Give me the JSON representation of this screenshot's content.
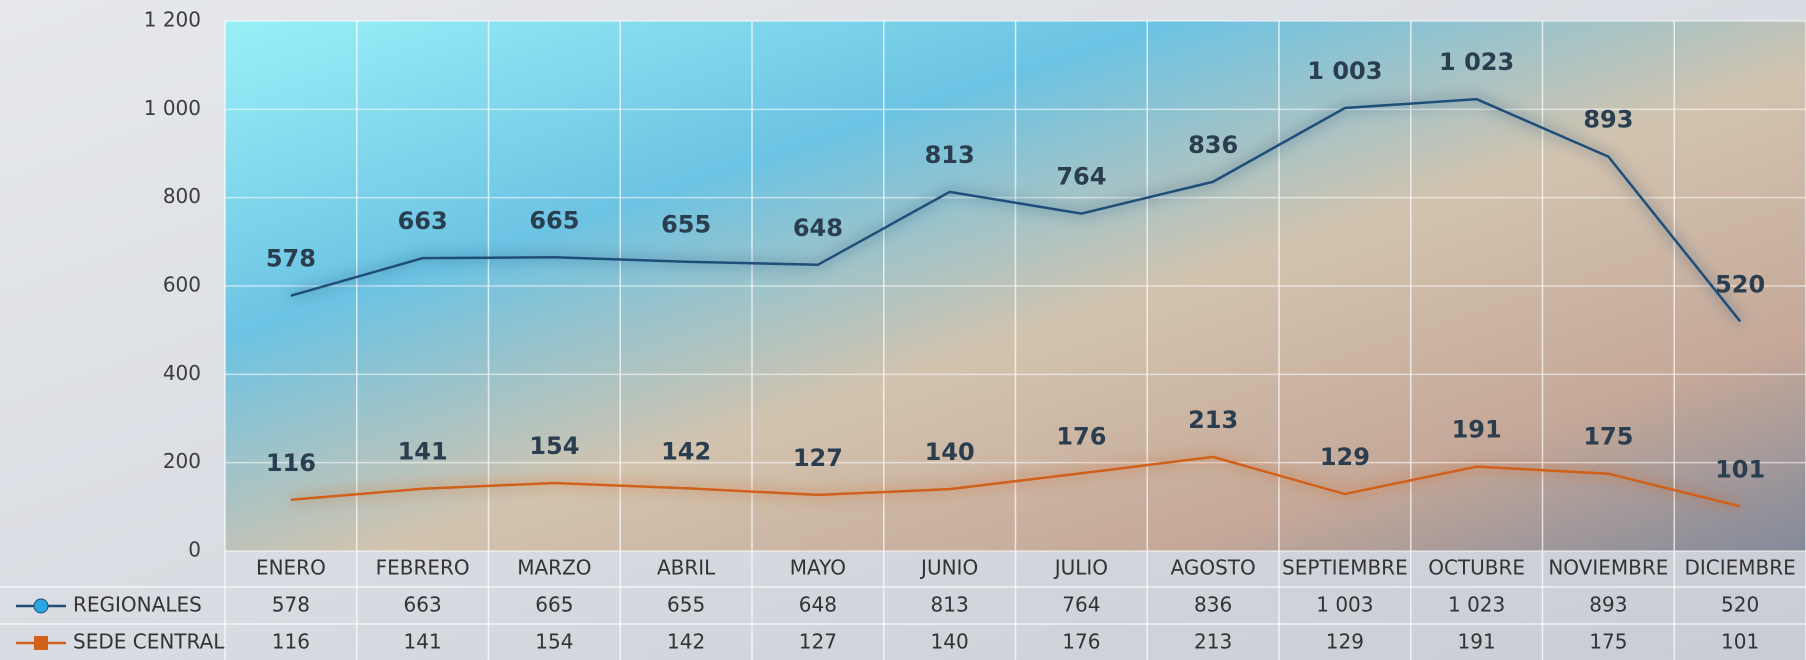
{
  "chart_data": {
    "type": "line",
    "categories": [
      "ENERO",
      "FEBRERO",
      "MARZO",
      "ABRIL",
      "MAYO",
      "JUNIO",
      "JULIO",
      "AGOSTO",
      "SEPTIEMBRE",
      "OCTUBRE",
      "NOVIEMBRE",
      "DICIEMBRE"
    ],
    "series": [
      {
        "name": "REGIONALES",
        "color": "#1f4e79",
        "marker": "circle",
        "values": [
          578,
          663,
          665,
          655,
          648,
          813,
          764,
          836,
          1003,
          1023,
          893,
          520
        ],
        "value_labels": [
          "578",
          "663",
          "665",
          "655",
          "648",
          "813",
          "764",
          "836",
          "1 003",
          "1 023",
          "893",
          "520"
        ]
      },
      {
        "name": "SEDE CENTRAL",
        "color": "#d0601a",
        "marker": "square",
        "values": [
          116,
          141,
          154,
          142,
          127,
          140,
          176,
          213,
          129,
          191,
          175,
          101
        ]
      }
    ],
    "ylim": [
      0,
      1200
    ],
    "yticks": [
      0,
      200,
      400,
      600,
      800,
      {
        "value": 1000,
        "label": "1 000"
      },
      {
        "value": 1200,
        "label": "1 200"
      }
    ],
    "grid": true
  }
}
